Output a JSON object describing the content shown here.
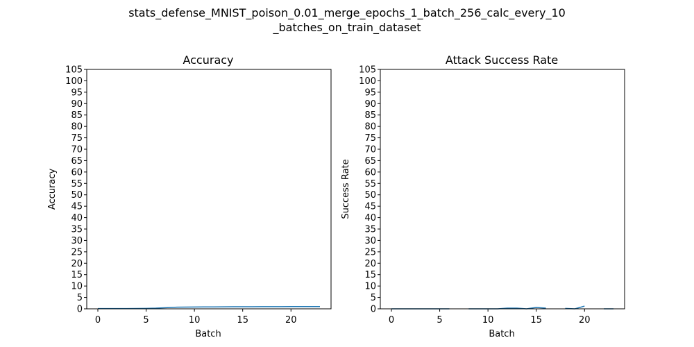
{
  "suptitle": [
    "stats_defense_MNIST_poison_0.01_merge_epochs_1_batch_256_calc_every_10",
    "_batches_on_train_dataset"
  ],
  "chart_data": [
    {
      "type": "line",
      "title": "Accuracy",
      "xlabel": "Batch",
      "ylabel": "Accuracy",
      "xlim": [
        -1.15,
        24.15
      ],
      "ylim": [
        0,
        105
      ],
      "xticks": [
        0,
        5,
        10,
        15,
        20
      ],
      "yticks": [
        0,
        5,
        10,
        15,
        20,
        25,
        30,
        35,
        40,
        45,
        50,
        55,
        60,
        65,
        70,
        75,
        80,
        85,
        90,
        95,
        100,
        105
      ],
      "line_color": "#1f77b4",
      "series": [
        {
          "x": [
            0,
            1,
            2,
            3,
            4,
            5,
            6,
            7,
            8,
            9,
            10,
            11,
            12,
            13,
            14,
            15,
            16,
            17,
            18,
            19,
            20,
            21,
            22,
            23
          ],
          "values": [
            0.1,
            0.1,
            0.1,
            0.12,
            0.15,
            0.2,
            0.3,
            0.5,
            0.7,
            0.75,
            0.8,
            0.85,
            0.85,
            0.88,
            0.9,
            0.92,
            0.93,
            0.95,
            0.95,
            0.96,
            0.97,
            0.97,
            0.98,
            0.98
          ]
        }
      ]
    },
    {
      "type": "line",
      "title": "Attack Success Rate",
      "xlabel": "Batch",
      "ylabel": "Success Rate",
      "xlim": [
        -1.15,
        24.15
      ],
      "ylim": [
        0,
        105
      ],
      "xticks": [
        0,
        5,
        10,
        15,
        20
      ],
      "yticks": [
        0,
        5,
        10,
        15,
        20,
        25,
        30,
        35,
        40,
        45,
        50,
        55,
        60,
        65,
        70,
        75,
        80,
        85,
        90,
        95,
        100,
        105
      ],
      "line_color": "#1f77b4",
      "series": [
        {
          "segments": [
            {
              "x": [
                0,
                1,
                2,
                3,
                4,
                5,
                6
              ],
              "values": [
                0,
                0,
                0,
                0,
                0,
                0,
                0
              ]
            },
            {
              "x": [
                8,
                9,
                10,
                11,
                12,
                13,
                14,
                15,
                16
              ],
              "values": [
                0,
                0,
                0,
                0,
                0.3,
                0.3,
                0,
                0.6,
                0.3
              ]
            },
            {
              "x": [
                18,
                19,
                20
              ],
              "values": [
                0.2,
                0,
                1.2
              ]
            },
            {
              "x": [
                22,
                23
              ],
              "values": [
                0,
                0
              ]
            }
          ]
        }
      ]
    }
  ]
}
